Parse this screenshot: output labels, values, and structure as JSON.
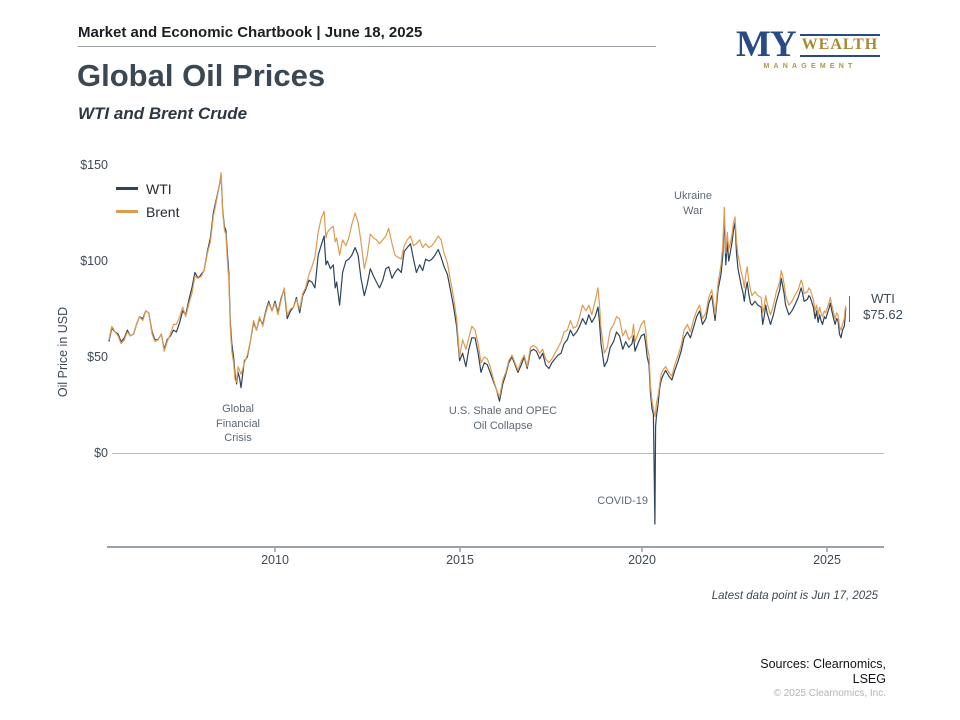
{
  "header": {
    "title": "Market and Economic Chartbook | June 18, 2025"
  },
  "logo": {
    "my": "MY",
    "wealth": "WEALTH",
    "management": "MANAGEMENT",
    "navy": "#2a4a86",
    "gold": "#a68932"
  },
  "page": {
    "title": "Global Oil Prices",
    "subtitle": "WTI and Brent Crude"
  },
  "chart": {
    "y_axis_label": "Oil Price in USD",
    "y_ticks": [
      "$150",
      "$100",
      "$50",
      "$0"
    ],
    "x_ticks": [
      "2010",
      "2015",
      "2020",
      "2025"
    ],
    "annotations": {
      "gfc": "Global\nFinancial\nCrisis",
      "shale": "U.S. Shale and OPEC\nOil Collapse",
      "covid": "COVID-19",
      "ukraine": "Ukraine\nWar"
    },
    "end_label": {
      "series": "WTI",
      "value": "$75.62"
    }
  },
  "footer": {
    "latest": "Latest data point is Jun 17, 2025",
    "sources": "Sources: Clearnomics,\nLSEG",
    "copyright": "© 2025 Clearnomics, Inc."
  },
  "chart_data": {
    "type": "line",
    "title": "Global Oil Prices",
    "subtitle": "WTI and Brent Crude",
    "ylabel": "Oil Price in USD",
    "xlabel": "",
    "x_unit": "decimal_year",
    "xlim": [
      2005.4,
      2025.7
    ],
    "ylim": [
      -45,
      155
    ],
    "y_tick_values": [
      0,
      50,
      100,
      150
    ],
    "x_tick_values": [
      2010,
      2015,
      2020,
      2025
    ],
    "grid": false,
    "legend_position": "top-left",
    "annotations": [
      {
        "text": "Global Financial Crisis",
        "x": 2009.0,
        "y": 22
      },
      {
        "text": "U.S. Shale and OPEC Oil Collapse",
        "x": 2016.2,
        "y": 21
      },
      {
        "text": "COVID-19",
        "x": 2020.1,
        "y": -25
      },
      {
        "text": "Ukraine War",
        "x": 2021.3,
        "y": 133
      },
      {
        "text": "WTI $75.62",
        "x": 2025.8,
        "y": 76
      }
    ],
    "x": [
      2005.5,
      2005.58,
      2005.67,
      2005.75,
      2005.83,
      2005.92,
      2006.0,
      2006.08,
      2006.17,
      2006.25,
      2006.33,
      2006.42,
      2006.5,
      2006.58,
      2006.67,
      2006.75,
      2006.83,
      2006.92,
      2007.0,
      2007.08,
      2007.17,
      2007.25,
      2007.33,
      2007.42,
      2007.5,
      2007.58,
      2007.67,
      2007.75,
      2007.83,
      2007.92,
      2008.0,
      2008.08,
      2008.17,
      2008.25,
      2008.33,
      2008.42,
      2008.5,
      2008.54,
      2008.58,
      2008.63,
      2008.67,
      2008.71,
      2008.75,
      2008.79,
      2008.83,
      2008.88,
      2008.92,
      2008.96,
      2009.0,
      2009.04,
      2009.08,
      2009.13,
      2009.17,
      2009.25,
      2009.33,
      2009.42,
      2009.5,
      2009.58,
      2009.67,
      2009.75,
      2009.83,
      2009.92,
      2010.0,
      2010.08,
      2010.17,
      2010.25,
      2010.33,
      2010.42,
      2010.5,
      2010.58,
      2010.67,
      2010.75,
      2010.83,
      2010.92,
      2011.0,
      2011.08,
      2011.17,
      2011.25,
      2011.33,
      2011.38,
      2011.42,
      2011.5,
      2011.58,
      2011.63,
      2011.67,
      2011.75,
      2011.83,
      2011.92,
      2012.0,
      2012.08,
      2012.17,
      2012.25,
      2012.33,
      2012.42,
      2012.5,
      2012.58,
      2012.67,
      2012.75,
      2012.83,
      2012.92,
      2013.0,
      2013.08,
      2013.17,
      2013.25,
      2013.33,
      2013.42,
      2013.5,
      2013.58,
      2013.67,
      2013.75,
      2013.83,
      2013.92,
      2014.0,
      2014.08,
      2014.17,
      2014.25,
      2014.33,
      2014.42,
      2014.5,
      2014.58,
      2014.67,
      2014.75,
      2014.83,
      2014.92,
      2015.0,
      2015.08,
      2015.17,
      2015.25,
      2015.33,
      2015.42,
      2015.5,
      2015.58,
      2015.67,
      2015.75,
      2015.83,
      2015.92,
      2016.0,
      2016.08,
      2016.17,
      2016.25,
      2016.33,
      2016.42,
      2016.5,
      2016.58,
      2016.67,
      2016.75,
      2016.83,
      2016.92,
      2017.0,
      2017.08,
      2017.17,
      2017.25,
      2017.33,
      2017.42,
      2017.5,
      2017.58,
      2017.67,
      2017.75,
      2017.83,
      2017.92,
      2018.0,
      2018.08,
      2018.17,
      2018.25,
      2018.33,
      2018.42,
      2018.5,
      2018.58,
      2018.67,
      2018.75,
      2018.79,
      2018.83,
      2018.92,
      2019.0,
      2019.08,
      2019.17,
      2019.25,
      2019.33,
      2019.42,
      2019.5,
      2019.58,
      2019.67,
      2019.71,
      2019.75,
      2019.83,
      2019.92,
      2020.0,
      2020.04,
      2020.08,
      2020.13,
      2020.17,
      2020.21,
      2020.25,
      2020.29,
      2020.31,
      2020.33,
      2020.38,
      2020.42,
      2020.46,
      2020.5,
      2020.58,
      2020.67,
      2020.75,
      2020.83,
      2020.92,
      2021.0,
      2021.08,
      2021.17,
      2021.25,
      2021.33,
      2021.42,
      2021.5,
      2021.58,
      2021.67,
      2021.75,
      2021.83,
      2021.92,
      2022.0,
      2022.08,
      2022.13,
      2022.17,
      2022.21,
      2022.25,
      2022.29,
      2022.33,
      2022.38,
      2022.42,
      2022.46,
      2022.5,
      2022.54,
      2022.58,
      2022.63,
      2022.67,
      2022.71,
      2022.75,
      2022.79,
      2022.83,
      2022.88,
      2022.92,
      2023.0,
      2023.08,
      2023.17,
      2023.21,
      2023.25,
      2023.29,
      2023.33,
      2023.42,
      2023.5,
      2023.58,
      2023.67,
      2023.71,
      2023.75,
      2023.79,
      2023.83,
      2023.92,
      2024.0,
      2024.08,
      2024.17,
      2024.25,
      2024.29,
      2024.33,
      2024.42,
      2024.46,
      2024.5,
      2024.58,
      2024.63,
      2024.67,
      2024.71,
      2024.75,
      2024.79,
      2024.83,
      2024.88,
      2024.92,
      2025.0,
      2025.04,
      2025.08,
      2025.13,
      2025.17,
      2025.21,
      2025.25,
      2025.29,
      2025.33,
      2025.37,
      2025.42,
      2025.44,
      2025.46
    ],
    "series": [
      {
        "name": "WTI",
        "color": "#2e4459",
        "end_value": 75.62,
        "values": [
          58,
          65,
          63,
          62,
          58,
          60,
          64,
          61,
          62,
          67,
          71,
          70,
          74,
          73,
          63,
          59,
          59,
          62,
          54,
          59,
          61,
          64,
          63,
          68,
          74,
          72,
          80,
          86,
          94,
          91,
          93,
          95,
          105,
          112,
          125,
          133,
          140,
          145,
          127,
          118,
          116,
          104,
          94,
          68,
          57,
          50,
          41,
          36,
          42,
          39,
          34,
          42,
          48,
          50,
          58,
          68,
          64,
          70,
          67,
          74,
          79,
          74,
          79,
          73,
          81,
          85,
          70,
          74,
          76,
          81,
          73,
          82,
          85,
          90,
          89,
          86,
          103,
          108,
          113,
          98,
          100,
          96,
          98,
          86,
          89,
          77,
          94,
          100,
          101,
          103,
          107,
          103,
          91,
          82,
          88,
          96,
          92,
          89,
          86,
          90,
          96,
          97,
          91,
          94,
          96,
          94,
          105,
          107,
          109,
          101,
          94,
          98,
          95,
          101,
          100,
          101,
          103,
          106,
          102,
          97,
          93,
          85,
          77,
          66,
          48,
          52,
          45,
          54,
          60,
          60,
          52,
          42,
          47,
          46,
          42,
          37,
          33,
          27,
          36,
          41,
          47,
          50,
          46,
          42,
          46,
          50,
          44,
          53,
          54,
          53,
          49,
          52,
          46,
          44,
          47,
          49,
          51,
          52,
          57,
          59,
          64,
          61,
          63,
          66,
          70,
          67,
          72,
          68,
          71,
          76,
          68,
          57,
          45,
          48,
          55,
          58,
          63,
          61,
          54,
          58,
          55,
          57,
          61,
          53,
          57,
          61,
          62,
          57,
          50,
          46,
          31,
          23,
          20,
          -37,
          14,
          19,
          26,
          34,
          38,
          40,
          43,
          40,
          38,
          43,
          48,
          53,
          60,
          63,
          60,
          65,
          71,
          74,
          67,
          70,
          78,
          82,
          69,
          85,
          93,
          103,
          123,
          98,
          110,
          100,
          104,
          110,
          116,
          120,
          104,
          96,
          92,
          87,
          84,
          79,
          85,
          89,
          83,
          78,
          77,
          79,
          77,
          76,
          67,
          71,
          77,
          73,
          67,
          72,
          79,
          85,
          91,
          87,
          83,
          77,
          72,
          74,
          77,
          81,
          86,
          83,
          79,
          80,
          82,
          81,
          76,
          70,
          74,
          68,
          72,
          69,
          67,
          71,
          70,
          75,
          78,
          74,
          70,
          67,
          70,
          69,
          62,
          60,
          64,
          66,
          70,
          75.62
        ]
      },
      {
        "name": "Brent",
        "color": "#de9b52",
        "values": [
          59,
          66,
          63,
          61,
          57,
          59,
          63,
          61,
          62,
          67,
          71,
          69,
          74,
          73,
          62,
          58,
          59,
          62,
          53,
          58,
          62,
          67,
          67,
          71,
          76,
          71,
          78,
          83,
          92,
          91,
          92,
          95,
          104,
          110,
          123,
          132,
          140,
          146,
          126,
          116,
          114,
          100,
          90,
          65,
          53,
          47,
          38,
          37,
          45,
          43,
          41,
          44,
          47,
          51,
          58,
          69,
          64,
          71,
          66,
          73,
          78,
          74,
          78,
          72,
          80,
          86,
          72,
          75,
          76,
          80,
          75,
          83,
          86,
          93,
          97,
          102,
          115,
          122,
          126,
          112,
          115,
          117,
          118,
          110,
          112,
          103,
          111,
          108,
          112,
          119,
          125,
          120,
          110,
          96,
          103,
          114,
          112,
          111,
          109,
          111,
          113,
          117,
          109,
          103,
          102,
          101,
          108,
          111,
          113,
          108,
          109,
          111,
          107,
          109,
          107,
          108,
          110,
          113,
          111,
          104,
          99,
          90,
          82,
          70,
          50,
          59,
          54,
          60,
          66,
          64,
          57,
          47,
          50,
          49,
          45,
          38,
          33,
          29,
          38,
          42,
          48,
          51,
          47,
          43,
          48,
          51,
          45,
          55,
          56,
          55,
          52,
          54,
          49,
          47,
          49,
          52,
          55,
          58,
          63,
          64,
          69,
          65,
          66,
          71,
          77,
          74,
          77,
          72,
          79,
          86,
          77,
          65,
          52,
          55,
          64,
          67,
          71,
          70,
          61,
          64,
          59,
          61,
          67,
          58,
          62,
          67,
          69,
          64,
          55,
          51,
          35,
          27,
          23,
          19,
          21,
          26,
          30,
          36,
          41,
          43,
          45,
          42,
          40,
          46,
          51,
          56,
          64,
          67,
          63,
          69,
          74,
          77,
          70,
          73,
          81,
          85,
          72,
          88,
          98,
          108,
          128,
          104,
          115,
          106,
          109,
          114,
          120,
          123,
          110,
          103,
          99,
          94,
          91,
          86,
          93,
          97,
          90,
          85,
          82,
          84,
          82,
          81,
          73,
          76,
          82,
          78,
          72,
          77,
          84,
          89,
          95,
          92,
          88,
          82,
          77,
          79,
          82,
          85,
          90,
          88,
          83,
          84,
          86,
          85,
          80,
          74,
          77,
          72,
          76,
          73,
          71,
          74,
          73,
          78,
          81,
          77,
          73,
          70,
          73,
          72,
          66,
          64,
          67,
          70,
          74,
          76.5
        ]
      }
    ]
  }
}
